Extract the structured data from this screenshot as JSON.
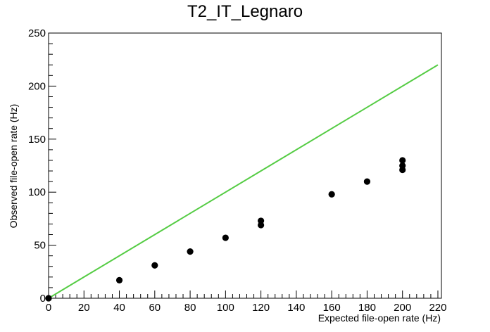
{
  "chart_data": {
    "type": "scatter",
    "title": "T2_IT_Legnaro",
    "xlabel": "Expected file-open rate (Hz)",
    "ylabel": "Observed file-open rate (Hz)",
    "xlim": [
      0,
      222
    ],
    "ylim": [
      0,
      250
    ],
    "x_ticks": [
      0,
      20,
      40,
      60,
      80,
      100,
      120,
      140,
      160,
      180,
      200,
      220
    ],
    "y_ticks": [
      0,
      50,
      100,
      150,
      200,
      250
    ],
    "grid": false,
    "legend": "none",
    "series": [
      {
        "type": "scatter",
        "color": "#000000",
        "points": [
          {
            "x": 0,
            "y": 0
          },
          {
            "x": 40,
            "y": 17
          },
          {
            "x": 60,
            "y": 31
          },
          {
            "x": 80,
            "y": 44
          },
          {
            "x": 100,
            "y": 57
          },
          {
            "x": 120,
            "y": 69
          },
          {
            "x": 120,
            "y": 73
          },
          {
            "x": 160,
            "y": 98
          },
          {
            "x": 180,
            "y": 110
          },
          {
            "x": 200,
            "y": 121
          },
          {
            "x": 200,
            "y": 125
          },
          {
            "x": 200,
            "y": 130
          }
        ]
      },
      {
        "type": "line",
        "color": "#55cc44",
        "points": [
          {
            "x": 0,
            "y": 0
          },
          {
            "x": 220,
            "y": 220
          }
        ]
      }
    ]
  }
}
